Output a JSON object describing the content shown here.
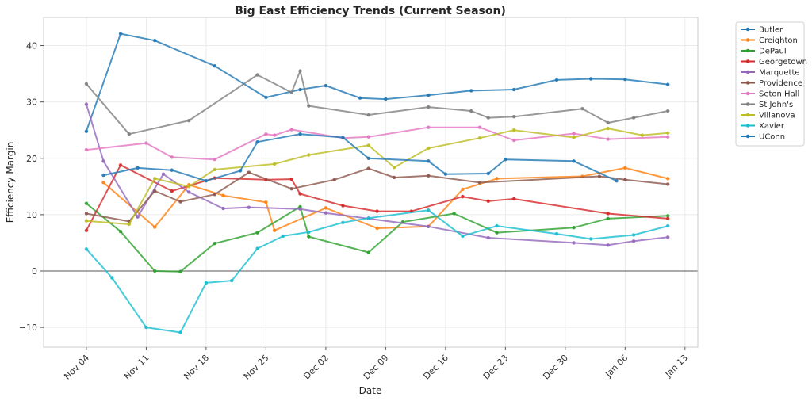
{
  "chart_data": {
    "type": "line",
    "title": "Big East Efficiency Trends (Current Season)",
    "xlabel": "Date",
    "ylabel": "Efficiency Margin",
    "ylim": [
      -13.5,
      45
    ],
    "yticks": [
      -10,
      0,
      10,
      20,
      30,
      40
    ],
    "x_domain_days": [
      -5,
      71.5
    ],
    "xticks": [
      {
        "label": "Nov 04",
        "day": 0
      },
      {
        "label": "Nov 11",
        "day": 7
      },
      {
        "label": "Nov 18",
        "day": 14
      },
      {
        "label": "Nov 25",
        "day": 21
      },
      {
        "label": "Dec 02",
        "day": 28
      },
      {
        "label": "Dec 09",
        "day": 35
      },
      {
        "label": "Dec 16",
        "day": 42
      },
      {
        "label": "Dec 23",
        "day": 49
      },
      {
        "label": "Dec 30",
        "day": 56
      },
      {
        "label": "Jan 06",
        "day": 63
      },
      {
        "label": "Jan 13",
        "day": 70
      }
    ],
    "grid": true,
    "zero_line": true,
    "legend_position": "outside-right",
    "series": [
      {
        "name": "Butler",
        "color": "#1f77b4",
        "x": [
          0,
          4,
          8,
          15,
          21,
          25,
          28,
          32,
          35,
          40,
          45,
          50,
          55,
          59,
          63,
          68
        ],
        "values": [
          24.8,
          42.1,
          40.9,
          36.4,
          30.8,
          32.2,
          32.9,
          30.7,
          30.5,
          31.2,
          32.0,
          32.2,
          33.9,
          34.1,
          34.0,
          33.1
        ]
      },
      {
        "name": "Creighton",
        "color": "#ff7f0e",
        "x": [
          2,
          8,
          12,
          16,
          21,
          22,
          28,
          34,
          40,
          44,
          48,
          58,
          63,
          68
        ],
        "values": [
          15.7,
          7.8,
          15.3,
          13.4,
          12.2,
          7.2,
          11.2,
          7.6,
          7.9,
          14.5,
          16.4,
          16.8,
          18.3,
          16.4
        ]
      },
      {
        "name": "DePaul",
        "color": "#2ca02c",
        "x": [
          0,
          4,
          8,
          11,
          15,
          20,
          25,
          26,
          33,
          37,
          43,
          48,
          57,
          61,
          68
        ],
        "values": [
          12.0,
          7.0,
          0.0,
          -0.1,
          4.9,
          6.8,
          11.4,
          6.1,
          3.3,
          8.7,
          10.2,
          6.8,
          7.7,
          9.3,
          9.8
        ]
      },
      {
        "name": "Georgetown",
        "color": "#d62728",
        "x": [
          0,
          4,
          10,
          15,
          21,
          24,
          25,
          30,
          34,
          38,
          44,
          47,
          50,
          61,
          68
        ],
        "values": [
          7.2,
          18.8,
          14.2,
          16.5,
          16.2,
          16.3,
          13.7,
          11.6,
          10.6,
          10.6,
          13.2,
          12.4,
          12.8,
          10.2,
          9.3
        ]
      },
      {
        "name": "Marquette",
        "color": "#9467bd",
        "x": [
          0,
          2,
          6,
          9,
          12,
          16,
          19,
          25,
          28,
          33,
          40,
          47,
          57,
          61,
          64,
          68
        ],
        "values": [
          29.6,
          19.5,
          9.6,
          17.2,
          14.0,
          11.1,
          11.3,
          11.0,
          10.3,
          9.3,
          7.9,
          5.9,
          5.0,
          4.6,
          5.3,
          6.0
        ]
      },
      {
        "name": "Providence",
        "color": "#8c564b",
        "x": [
          0,
          5,
          8,
          11,
          15,
          19,
          24,
          29,
          33,
          36,
          40,
          46,
          60,
          63,
          68
        ],
        "values": [
          10.2,
          8.8,
          14.2,
          12.3,
          13.6,
          17.5,
          14.6,
          16.2,
          18.2,
          16.6,
          16.9,
          15.7,
          16.8,
          16.2,
          15.4
        ]
      },
      {
        "name": "Seton Hall",
        "color": "#e377c2",
        "x": [
          0,
          7,
          10,
          15,
          21,
          22,
          24,
          30,
          33,
          40,
          46,
          50,
          57,
          61,
          68
        ],
        "values": [
          21.5,
          22.7,
          20.2,
          19.8,
          24.3,
          24.1,
          25.1,
          23.6,
          23.8,
          25.5,
          25.5,
          23.2,
          24.4,
          23.4,
          23.8
        ]
      },
      {
        "name": "St John's",
        "color": "#7f7f7f",
        "x": [
          0,
          5,
          12,
          20,
          24,
          25,
          26,
          33,
          40,
          45,
          47,
          50,
          58,
          61,
          64,
          68
        ],
        "values": [
          33.2,
          24.3,
          26.7,
          34.8,
          31.7,
          35.5,
          29.3,
          27.7,
          29.1,
          28.4,
          27.2,
          27.4,
          28.8,
          26.3,
          27.2,
          28.4
        ]
      },
      {
        "name": "Villanova",
        "color": "#bcbd22",
        "x": [
          0,
          5,
          8,
          12,
          15,
          22,
          26,
          33,
          36,
          40,
          46,
          50,
          57,
          61,
          65,
          68
        ],
        "values": [
          8.9,
          8.3,
          16.4,
          15.0,
          18.0,
          19.0,
          20.6,
          22.3,
          18.4,
          21.8,
          23.6,
          25.0,
          23.7,
          25.3,
          24.1,
          24.5
        ]
      },
      {
        "name": "Xavier",
        "color": "#17becf",
        "x": [
          0,
          3,
          7,
          11,
          14,
          17,
          20,
          23,
          26,
          30,
          33,
          40,
          44,
          48,
          55,
          59,
          64,
          68
        ],
        "values": [
          3.9,
          -1.2,
          -10.0,
          -10.9,
          -2.1,
          -1.7,
          4.0,
          6.2,
          6.9,
          8.6,
          9.4,
          10.8,
          6.2,
          8.0,
          6.6,
          5.7,
          6.4,
          8.0
        ]
      },
      {
        "name": "UConn",
        "color": "#1f77b4",
        "x": [
          2,
          6,
          10,
          14,
          18,
          20,
          25,
          30,
          33,
          40,
          42,
          47,
          49,
          57,
          62
        ],
        "values": [
          17.0,
          18.3,
          17.9,
          16.0,
          17.8,
          22.9,
          24.3,
          23.7,
          20.0,
          19.5,
          17.2,
          17.3,
          19.8,
          19.5,
          16.0
        ]
      }
    ]
  }
}
